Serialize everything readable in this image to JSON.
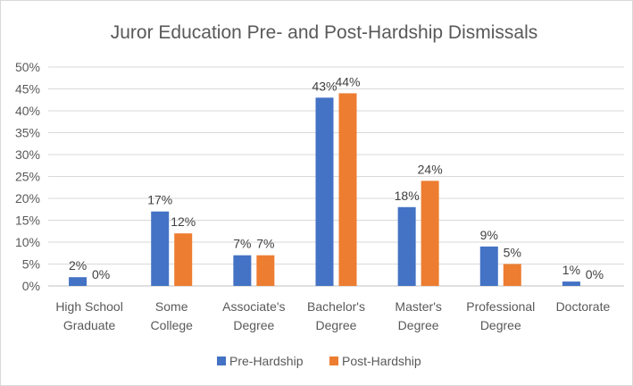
{
  "chart_data": {
    "type": "bar",
    "title": "Juror Education Pre- and Post-Hardship Dismissals",
    "categories": [
      [
        "High School",
        "Graduate"
      ],
      [
        "Some",
        "College"
      ],
      [
        "Associate's",
        "Degree"
      ],
      [
        "Bachelor's",
        "Degree"
      ],
      [
        "Master's",
        "Degree"
      ],
      [
        "Professional",
        "Degree"
      ],
      [
        "Doctorate"
      ]
    ],
    "series": [
      {
        "name": "Pre-Hardship",
        "values": [
          2,
          17,
          7,
          43,
          18,
          9,
          1
        ],
        "labels": [
          "2%",
          "17%",
          "7%",
          "43%",
          "18%",
          "9%",
          "1%"
        ],
        "color": "#4472C4"
      },
      {
        "name": "Post-Hardship",
        "values": [
          0,
          12,
          7,
          44,
          24,
          5,
          0
        ],
        "labels": [
          "0%",
          "12%",
          "7%",
          "44%",
          "24%",
          "5%",
          "0%"
        ],
        "color": "#ED7D31"
      }
    ],
    "ylim": [
      0,
      50
    ],
    "yticks": [
      "0%",
      "5%",
      "10%",
      "15%",
      "20%",
      "25%",
      "30%",
      "35%",
      "40%",
      "45%",
      "50%"
    ],
    "grid": true,
    "legend_position": "bottom"
  }
}
